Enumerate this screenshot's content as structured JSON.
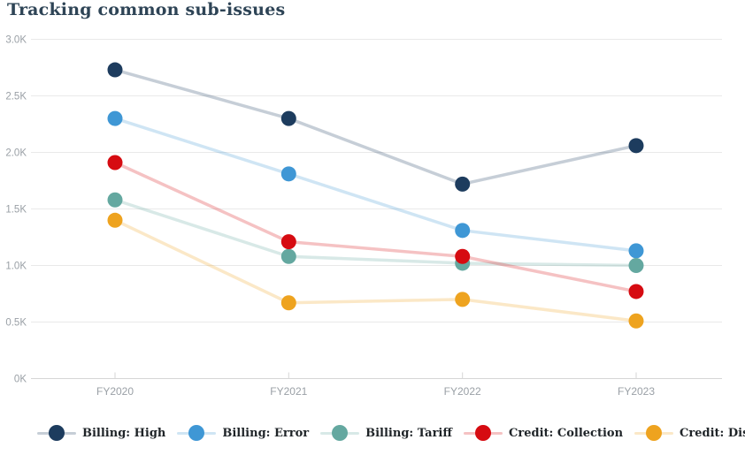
{
  "chart_data": {
    "type": "line",
    "title": "Tracking common sub-issues",
    "categories": [
      "FY2020",
      "FY2021",
      "FY2022",
      "FY2023"
    ],
    "series": [
      {
        "name": "Billing: High",
        "color": "#1d3c5e",
        "values": [
          2730,
          2300,
          1720,
          2060
        ]
      },
      {
        "name": "Billing: Error",
        "color": "#3f97d5",
        "values": [
          2300,
          1810,
          1310,
          1130
        ]
      },
      {
        "name": "Billing: Tariff",
        "color": "#64a8a0",
        "values": [
          1580,
          1080,
          1020,
          1000
        ]
      },
      {
        "name": "Credit: Collection",
        "color": "#d60b11",
        "values": [
          1910,
          1210,
          1080,
          770
        ]
      },
      {
        "name": "Credit: Disconnection",
        "color": "#eea31f",
        "values": [
          1400,
          670,
          700,
          510
        ]
      }
    ],
    "y_axis": {
      "min": 0,
      "max": 3000,
      "ticks": [
        "0K",
        "0.5K",
        "1.0K",
        "1.5K",
        "2.0K",
        "2.5K",
        "3.0K"
      ]
    },
    "x_axis": {
      "labels": [
        "FY2020",
        "FY2021",
        "FY2022",
        "FY2023"
      ]
    },
    "grid": true,
    "legend_position": "bottom",
    "colors": {
      "title_text": "#2e4456",
      "axis_text": "#9aa0a6",
      "legend_text": "#1f2428",
      "gridline": "#e9e9e9",
      "axis_line": "#d6d6d6"
    }
  }
}
